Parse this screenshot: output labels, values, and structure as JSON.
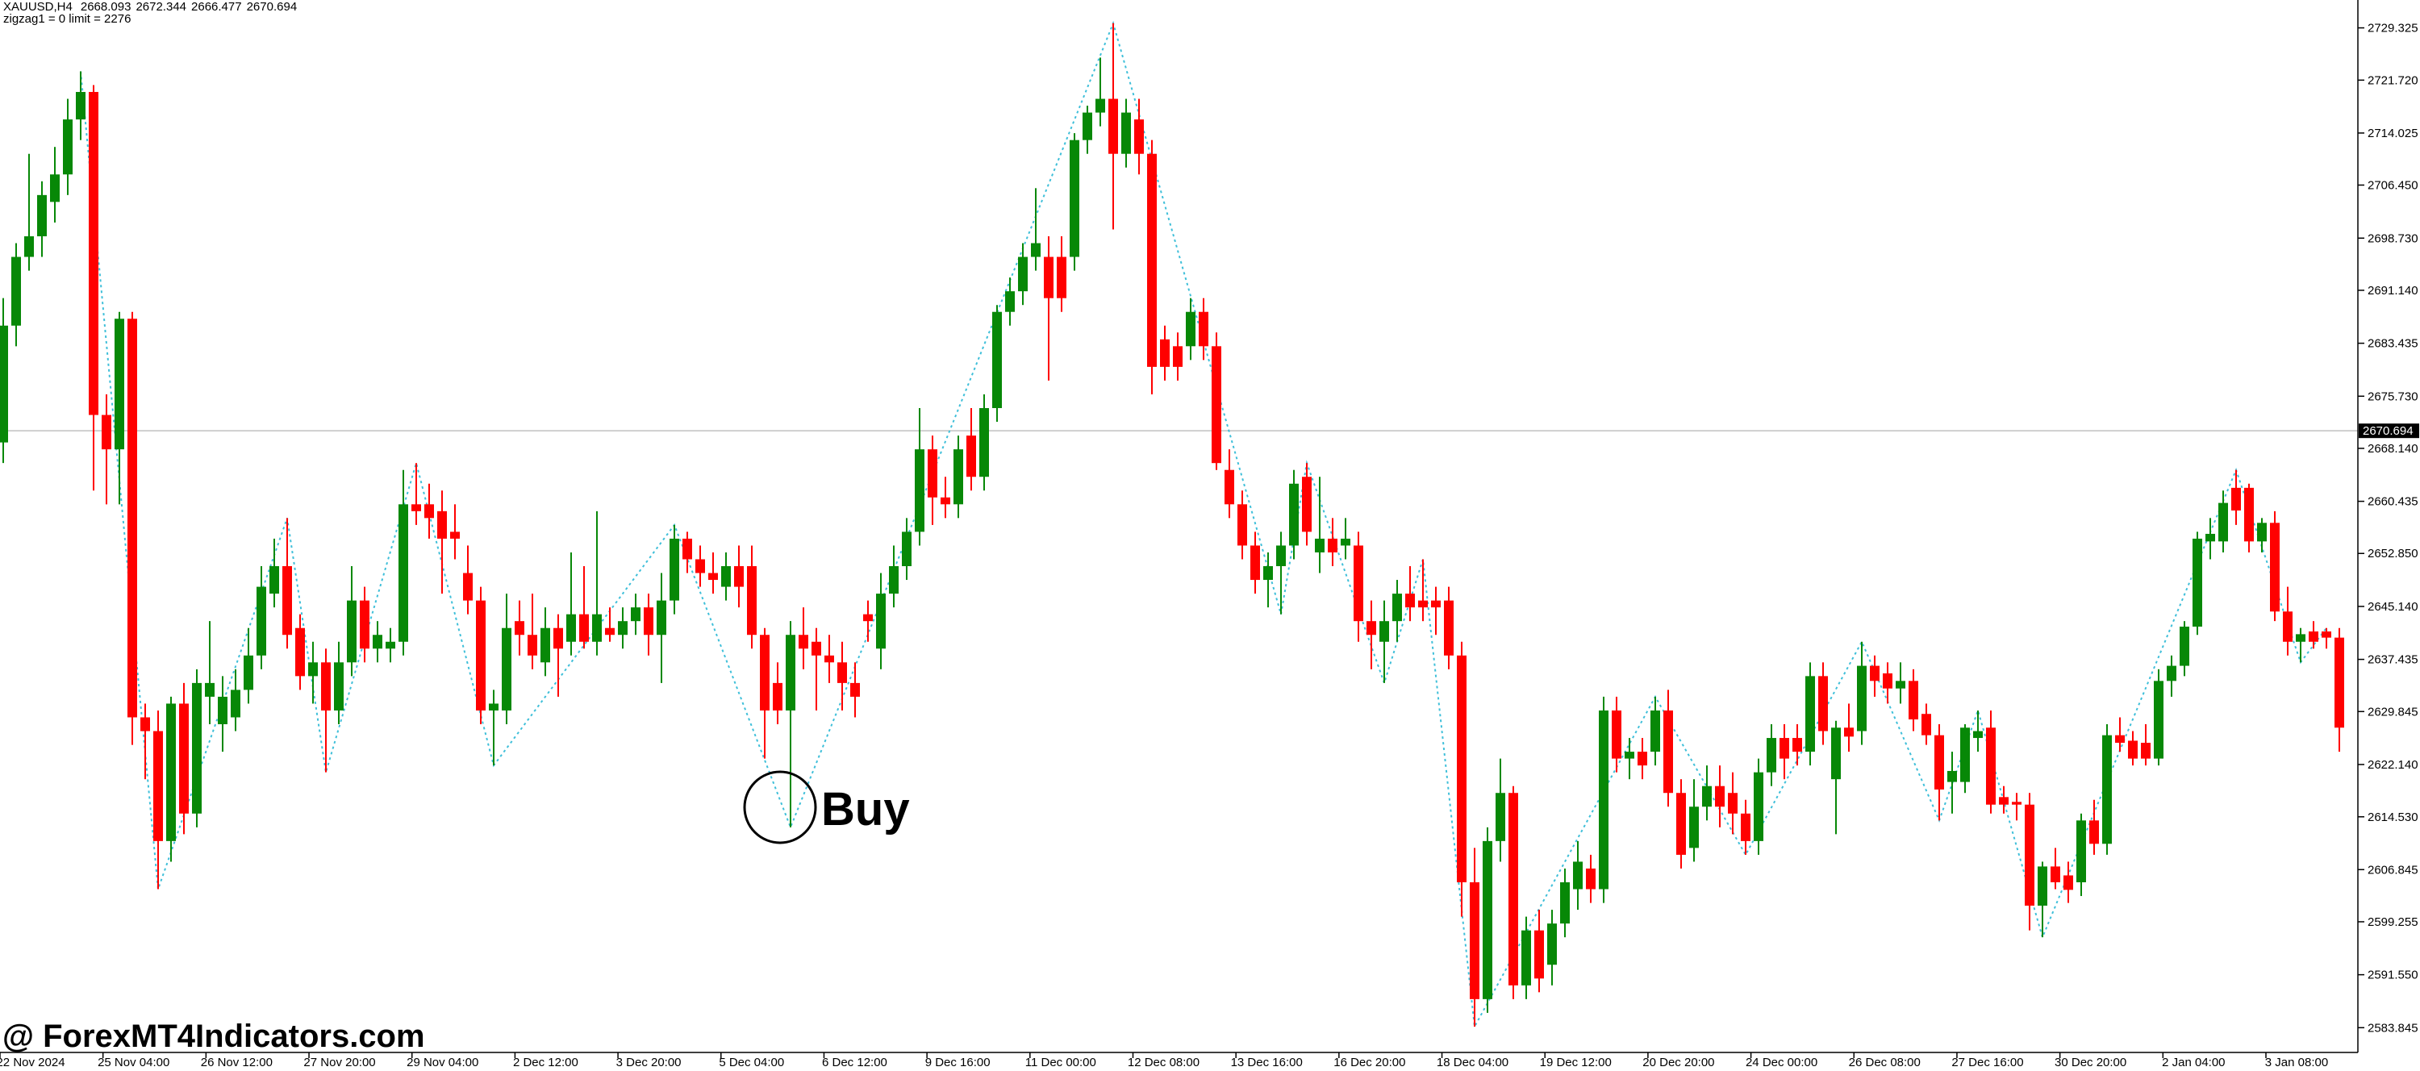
{
  "chart_data": {
    "type": "candlestick",
    "symbol": "XAUUSD,H4",
    "ohlc": [
      2668.093,
      2672.344,
      2666.477,
      2670.694
    ],
    "indicator": "zigzag1 = 0 limit = 2276",
    "up_color": "#078807",
    "down_color": "#ff0000",
    "zigzag_color": "#3fbfd9",
    "ylim": [
      2580.24,
      2733.38
    ],
    "yticks": [
      2729.325,
      {
        "value": 2721.72,
        "label": "2721.720"
      },
      2714.025,
      {
        "value": 2706.45,
        "label": "2706.450"
      },
      {
        "value": 2698.73,
        "label": "2698.730"
      },
      {
        "value": 2691.14,
        "label": "2691.140"
      },
      2683.435,
      {
        "value": 2675.73,
        "label": "2675.730"
      },
      {
        "value": 2668.14,
        "label": "2668.140"
      },
      2660.435,
      {
        "value": 2652.85,
        "label": "2652.850"
      },
      {
        "value": 2645.14,
        "label": "2645.140"
      },
      2637.435,
      2629.845,
      {
        "value": 2622.14,
        "label": "2622.140"
      },
      {
        "value": 2614.53,
        "label": "2614.530"
      },
      2606.845,
      2599.255,
      {
        "value": 2591.55,
        "label": "2591.550"
      },
      2583.845
    ],
    "time_labels": [
      "22 Nov 2024",
      "25 Nov 04:00",
      "26 Nov 12:00",
      "27 Nov 20:00",
      "29 Nov 04:00",
      "2 Dec 12:00",
      "3 Dec 20:00",
      "5 Dec 04:00",
      "6 Dec 12:00",
      "9 Dec 16:00",
      "11 Dec 00:00",
      "12 Dec 08:00",
      "13 Dec 16:00",
      "16 Dec 20:00",
      "18 Dec 04:00",
      "19 Dec 12:00",
      "20 Dec 20:00",
      "24 Dec 00:00",
      "26 Dec 08:00",
      "27 Dec 16:00",
      "30 Dec 20:00",
      "2 Jan 04:00",
      "3 Jan 08:00"
    ],
    "candles": [
      [
        2669,
        2690,
        2666,
        2686
      ],
      [
        2686,
        2698,
        2683,
        2696
      ],
      [
        2696,
        2711,
        2694,
        2699
      ],
      [
        2699,
        2707,
        2696,
        2705
      ],
      [
        2704,
        2712,
        2701,
        2708
      ],
      [
        2708,
        2719,
        2705,
        2716
      ],
      [
        2716,
        2723,
        2713,
        2720
      ],
      [
        2720,
        2721,
        2662,
        2673
      ],
      [
        2673,
        2676,
        2660,
        2668
      ],
      [
        2668,
        2688,
        2660,
        2687
      ],
      [
        2687,
        2688,
        2625,
        2629
      ],
      [
        2629,
        2631,
        2620,
        2627
      ],
      [
        2627,
        2630,
        2604,
        2611
      ],
      [
        2611,
        2632,
        2608,
        2631
      ],
      [
        2631,
        2634,
        2612,
        2615
      ],
      [
        2615,
        2636,
        2613,
        2634
      ],
      [
        2632,
        2643,
        2628,
        2634
      ],
      [
        2628,
        2635,
        2624,
        2632
      ],
      [
        2629,
        2636,
        2627,
        2633
      ],
      [
        2633,
        2642,
        2631,
        2638
      ],
      [
        2638,
        2651,
        2636,
        2648
      ],
      [
        2647,
        2655,
        2645,
        2651
      ],
      [
        2651,
        2658,
        2639,
        2641
      ],
      [
        2642,
        2644,
        2633,
        2635
      ],
      [
        2635,
        2640,
        2631,
        2637
      ],
      [
        2637,
        2639,
        2621,
        2630
      ],
      [
        2630,
        2640,
        2628,
        2637
      ],
      [
        2637,
        2651,
        2635,
        2646
      ],
      [
        2646,
        2648,
        2637,
        2639
      ],
      [
        2639,
        2643,
        2637,
        2641
      ],
      [
        2639,
        2642,
        2637,
        2640
      ],
      [
        2640,
        2665,
        2638,
        2660
      ],
      [
        2660,
        2666,
        2657,
        2659
      ],
      [
        2660,
        2663,
        2655,
        2658
      ],
      [
        2659,
        2662,
        2647,
        2655
      ],
      [
        2656,
        2660,
        2652,
        2655
      ],
      [
        2650,
        2654,
        2644,
        2646
      ],
      [
        2646,
        2648,
        2628,
        2630
      ],
      [
        2630,
        2633,
        2622,
        2631
      ],
      [
        2630,
        2647,
        2628,
        2642
      ],
      [
        2643,
        2646,
        2638,
        2641
      ],
      [
        2641,
        2647,
        2636,
        2638
      ],
      [
        2637,
        2645,
        2635,
        2642
      ],
      [
        2642,
        2644,
        2632,
        2639
      ],
      [
        2640,
        2653,
        2638,
        2644
      ],
      [
        2644,
        2651,
        2639,
        2640
      ],
      [
        2640,
        2659,
        2638,
        2644
      ],
      [
        2642,
        2645,
        2640,
        2641
      ],
      [
        2641,
        2645,
        2639,
        2643
      ],
      [
        2643,
        2647,
        2641,
        2645
      ],
      [
        2645,
        2647,
        2638,
        2641
      ],
      [
        2641,
        2650,
        2634,
        2646
      ],
      [
        2646,
        2657,
        2644,
        2655
      ],
      [
        2655,
        2656,
        2650,
        2652
      ],
      [
        2652,
        2654,
        2648,
        2650
      ],
      [
        2650,
        2653,
        2647,
        2649
      ],
      [
        2648,
        2653,
        2646,
        2651
      ],
      [
        2651,
        2654,
        2645,
        2648
      ],
      [
        2651,
        2654,
        2639,
        2641
      ],
      [
        2641,
        2642,
        2623,
        2630
      ],
      [
        2634,
        2637,
        2628,
        2630
      ],
      [
        2630,
        2643,
        2613,
        2641
      ],
      [
        2641,
        2645,
        2636,
        2639
      ],
      [
        2640,
        2642,
        2630,
        2638
      ],
      [
        2638,
        2641,
        2634,
        2637
      ],
      [
        2637,
        2640,
        2630,
        2634
      ],
      [
        2634,
        2637,
        2629,
        2632
      ],
      [
        2644,
        2646,
        2640,
        2643
      ],
      [
        2639,
        2650,
        2636,
        2647
      ],
      [
        2647,
        2654,
        2645,
        2651
      ],
      [
        2651,
        2658,
        2649,
        2656
      ],
      [
        2656,
        2674,
        2654,
        2668
      ],
      [
        2668,
        2670,
        2657,
        2661
      ],
      [
        2661,
        2664,
        2658,
        2660
      ],
      [
        2660,
        2670,
        2658,
        2668
      ],
      [
        2670,
        2674,
        2662,
        2664
      ],
      [
        2664,
        2676,
        2662,
        2674
      ],
      [
        2674,
        2689,
        2672,
        2688
      ],
      [
        2688,
        2693,
        2686,
        2691
      ],
      [
        2691,
        2698,
        2689,
        2696
      ],
      [
        2696,
        2706,
        2694,
        2698
      ],
      [
        2696,
        2699,
        2678,
        2690
      ],
      [
        2696,
        2699,
        2688,
        2690
      ],
      [
        2696,
        2714,
        2694,
        2713
      ],
      [
        2713,
        2718,
        2711,
        2717
      ],
      [
        2717,
        2725,
        2715,
        2719
      ],
      [
        2719,
        2730,
        2700,
        2711
      ],
      [
        2711,
        2719,
        2709,
        2717
      ],
      [
        2716,
        2719,
        2708,
        2711
      ],
      [
        2711,
        2713,
        2676,
        2680
      ],
      [
        2684,
        2686,
        2678,
        2680
      ],
      [
        2683,
        2685,
        2678,
        2680
      ],
      [
        2683,
        2690,
        2681,
        2688
      ],
      [
        2688,
        2690,
        2681,
        2683
      ],
      [
        2683,
        2685,
        2665,
        2666
      ],
      [
        2665,
        2668,
        2658,
        2660
      ],
      [
        2660,
        2662,
        2652,
        2654
      ],
      [
        2654,
        2656,
        2647,
        2649
      ],
      [
        2649,
        2653,
        2645,
        2651
      ],
      [
        2651,
        2656,
        2644,
        2654
      ],
      [
        2654,
        2665,
        2652,
        2663
      ],
      [
        2664,
        2666,
        2654,
        2656
      ],
      [
        2653,
        2664,
        2650,
        2655
      ],
      [
        2655,
        2658,
        2651,
        2653
      ],
      [
        2654,
        2658,
        2652,
        2655
      ],
      [
        2654,
        2656,
        2640,
        2643
      ],
      [
        2643,
        2646,
        2636,
        2641
      ],
      [
        2640,
        2646,
        2634,
        2643
      ],
      [
        2643,
        2649,
        2640,
        2647
      ],
      [
        2647,
        2651,
        2643,
        2645
      ],
      [
        2646,
        2652,
        2643,
        2645
      ],
      [
        2646,
        2648,
        2641,
        2645
      ],
      [
        2646,
        2648,
        2636,
        2638
      ],
      [
        2638,
        2640,
        2600,
        2605
      ],
      [
        2605,
        2610,
        2584,
        2588
      ],
      [
        2588,
        2613,
        2586,
        2611
      ],
      [
        2611,
        2623,
        2608,
        2618
      ],
      [
        2618,
        2619,
        2588,
        2590
      ],
      [
        2590,
        2600,
        2588,
        2598
      ],
      [
        2598,
        2601,
        2589,
        2591
      ],
      [
        2593,
        2601,
        2590,
        2599
      ],
      [
        2599,
        2607,
        2597,
        2605
      ],
      [
        2604,
        2611,
        2601,
        2608
      ],
      [
        2607,
        2609,
        2602,
        2604
      ],
      [
        2604,
        2632,
        2602,
        2630
      ],
      [
        2630,
        2632,
        2621,
        2623
      ],
      [
        2623,
        2626,
        2620,
        2624
      ],
      [
        2624,
        2626,
        2620,
        2622
      ],
      [
        2624,
        2632,
        2622,
        2630
      ],
      [
        2630,
        2633,
        2616,
        2618
      ],
      [
        2618,
        2620,
        2607,
        2609
      ],
      [
        2610,
        2620,
        2608,
        2616
      ],
      [
        2616,
        2622,
        2614,
        2619
      ],
      [
        2619,
        2622,
        2613,
        2616
      ],
      [
        2618,
        2621,
        2612,
        2615
      ],
      [
        2615,
        2617,
        2609,
        2611
      ],
      [
        2611,
        2623,
        2609,
        2621
      ],
      [
        2621,
        2628,
        2619,
        2626
      ],
      [
        2626,
        2628,
        2620,
        2623
      ],
      [
        2626,
        2628,
        2622,
        2624
      ],
      [
        2624,
        2637,
        2622,
        2635
      ],
      [
        2635,
        2637,
        2625,
        2627
      ],
      [
        2620,
        2628.5,
        2612,
        2627.5
      ],
      [
        2627.5,
        2631,
        2624,
        2626.2
      ],
      [
        2627,
        2640,
        2625,
        2636.5
      ],
      [
        2636.5,
        2638,
        2632,
        2634.3
      ],
      [
        2635.4,
        2637,
        2631,
        2633.2
      ],
      [
        2633.2,
        2637,
        2631,
        2634.3
      ],
      [
        2634.3,
        2636,
        2627,
        2628.7
      ],
      [
        2629.5,
        2631,
        2625,
        2626.4
      ],
      [
        2626.4,
        2628,
        2614,
        2618.5
      ],
      [
        2619.6,
        2624,
        2615,
        2621.2
      ],
      [
        2619.6,
        2628,
        2618,
        2627.5
      ],
      [
        2626,
        2630,
        2624,
        2627
      ],
      [
        2627.5,
        2630,
        2615,
        2616.3
      ],
      [
        2617.4,
        2619,
        2615,
        2616.3
      ],
      [
        2616.7,
        2618,
        2614,
        2616.3
      ],
      [
        2616.3,
        2618,
        2598,
        2601.6
      ],
      [
        2601.6,
        2608,
        2597,
        2607.3
      ],
      [
        2607.3,
        2610,
        2604,
        2605
      ],
      [
        2606,
        2608,
        2602,
        2603.9
      ],
      [
        2605,
        2615,
        2603,
        2614
      ],
      [
        2614,
        2617,
        2609,
        2610.6
      ],
      [
        2610.6,
        2628,
        2609,
        2626.4
      ],
      [
        2626.4,
        2629,
        2624,
        2625.3
      ],
      [
        2625.6,
        2627,
        2622,
        2623
      ],
      [
        2625.3,
        2628,
        2622,
        2623
      ],
      [
        2623,
        2636,
        2622,
        2634.3
      ],
      [
        2634.3,
        2638,
        2632,
        2636.5
      ],
      [
        2636.5,
        2643,
        2635,
        2642.2
      ],
      [
        2642.2,
        2656,
        2641,
        2655
      ],
      [
        2654.6,
        2658,
        2652,
        2655.7
      ],
      [
        2654.6,
        2662,
        2653,
        2660.2
      ],
      [
        2662.4,
        2665,
        2657,
        2659.1
      ],
      [
        2662.4,
        2663,
        2653,
        2654.6
      ],
      [
        2654.6,
        2658,
        2653,
        2657.3
      ],
      [
        2657.3,
        2659,
        2643,
        2644.4
      ],
      [
        2644.4,
        2648,
        2638,
        2640
      ],
      [
        2640,
        2642,
        2637,
        2641.1
      ],
      [
        2641.5,
        2643,
        2639,
        2640
      ],
      [
        2641.5,
        2642,
        2639,
        2640.6
      ],
      [
        2640.6,
        2642,
        2624,
        2627.5
      ]
    ],
    "zigzag": [
      [
        6,
        2723
      ],
      [
        12,
        2604
      ],
      [
        22,
        2658
      ],
      [
        25,
        2621
      ],
      [
        32,
        2666
      ],
      [
        38,
        2622
      ],
      [
        52,
        2657
      ],
      [
        61,
        2613
      ],
      [
        86,
        2730
      ],
      [
        99,
        2644
      ],
      [
        101,
        2666
      ],
      [
        107,
        2634
      ],
      [
        110,
        2652
      ],
      [
        114,
        2584
      ],
      [
        128,
        2632
      ],
      [
        135,
        2609
      ],
      [
        144,
        2640
      ],
      [
        150,
        2614
      ],
      [
        153,
        2630
      ],
      [
        158,
        2597
      ],
      [
        173,
        2665
      ],
      [
        178,
        2637
      ],
      [
        180,
        2642
      ]
    ],
    "annotation": "Buy",
    "watermark": "@ ForexMT4Indicators.com"
  }
}
